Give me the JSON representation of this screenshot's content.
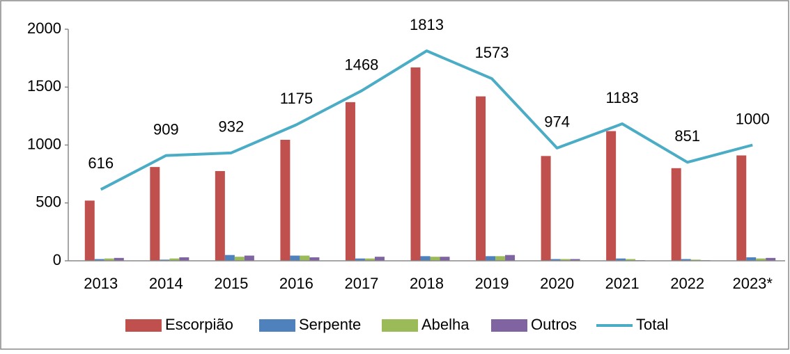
{
  "chart_data": {
    "type": "bar",
    "categories": [
      "2013",
      "2014",
      "2015",
      "2016",
      "2017",
      "2018",
      "2019",
      "2020",
      "2021",
      "2022",
      "2023*"
    ],
    "series": [
      {
        "name": "Escorpião",
        "color": "#c0504d",
        "values": [
          520,
          810,
          775,
          1045,
          1370,
          1670,
          1420,
          905,
          1120,
          800,
          910
        ]
      },
      {
        "name": "Serpente",
        "color": "#4f81bd",
        "values": [
          15,
          10,
          50,
          45,
          20,
          40,
          40,
          15,
          20,
          15,
          30
        ]
      },
      {
        "name": "Abelha",
        "color": "#9bbb59",
        "values": [
          20,
          20,
          35,
          45,
          20,
          35,
          40,
          15,
          15,
          10,
          20
        ]
      },
      {
        "name": "Outros",
        "color": "#8064a2",
        "values": [
          25,
          30,
          45,
          30,
          35,
          35,
          50,
          15,
          5,
          5,
          25
        ]
      },
      {
        "name": "Total",
        "type": "line",
        "color": "#4bacc6",
        "values": [
          616,
          909,
          932,
          1175,
          1468,
          1813,
          1573,
          974,
          1183,
          851,
          1000
        ]
      }
    ],
    "ylim": [
      0,
      2000
    ],
    "yticks": [
      0,
      500,
      1000,
      1500,
      2000
    ],
    "grid": false,
    "legend": "bottom"
  }
}
